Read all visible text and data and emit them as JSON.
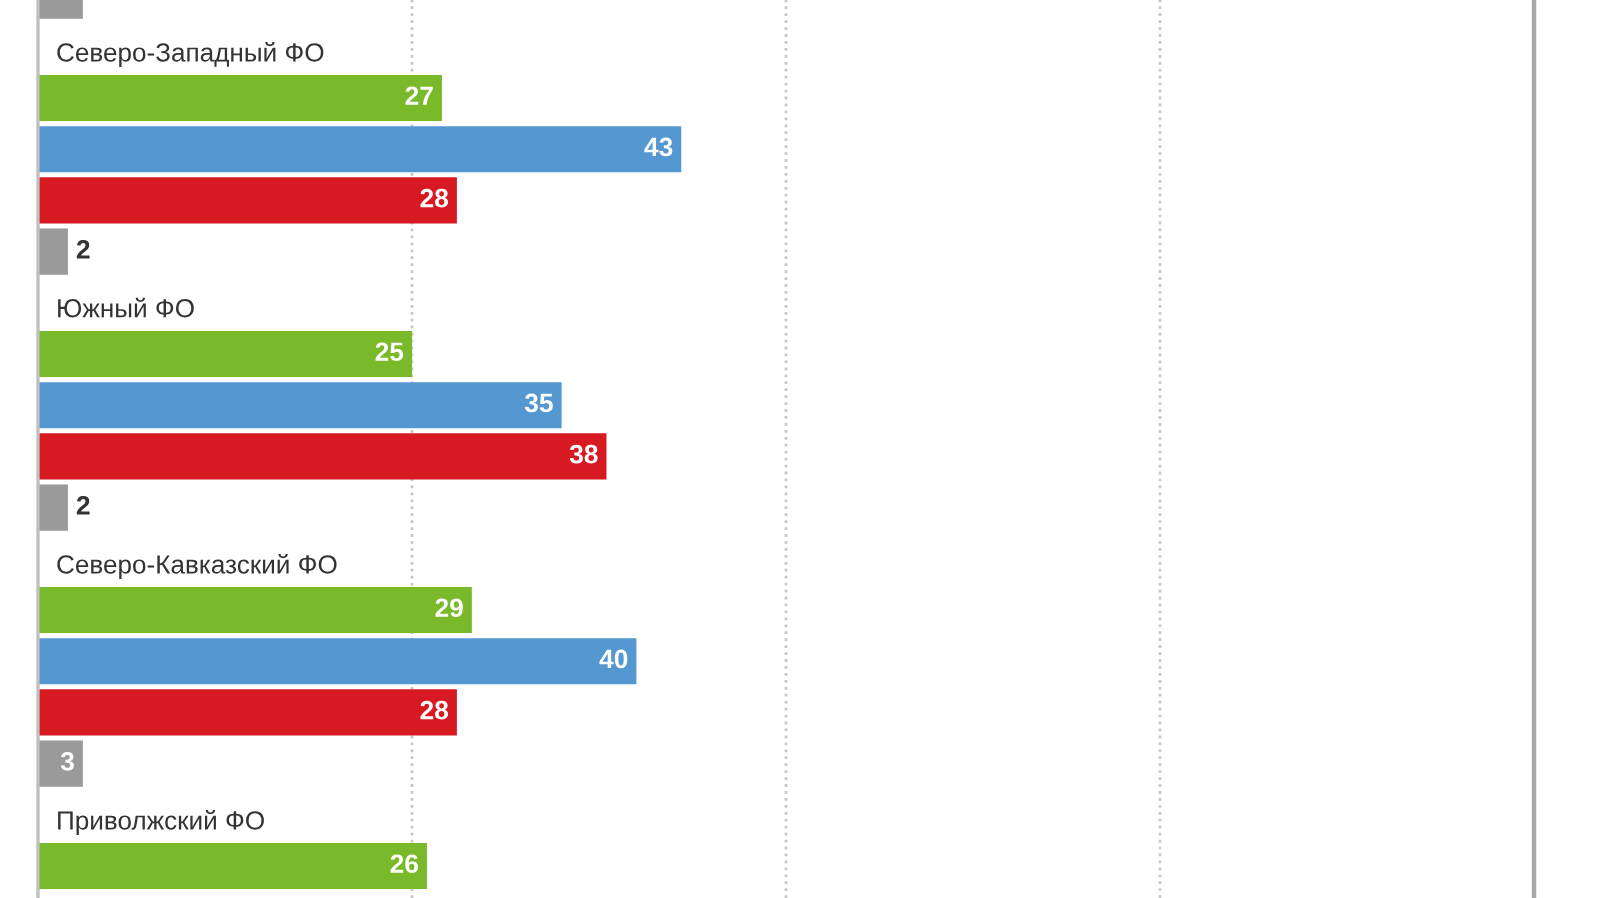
{
  "chart_data": {
    "type": "bar",
    "orientation": "horizontal",
    "categories": [
      null,
      "Северо-Западный ФО",
      "Южный ФО",
      "Северо-Кавказский ФО",
      "Приволжский ФО"
    ],
    "series": [
      {
        "color": "#7ab929",
        "values": [
          null,
          27,
          25,
          29,
          26
        ],
        "value_labels": [
          null,
          "27",
          "25",
          "29",
          "26"
        ]
      },
      {
        "color": "#5597d0",
        "values": [
          null,
          43,
          35,
          40,
          null
        ],
        "value_labels": [
          null,
          "43",
          "35",
          "40",
          null
        ]
      },
      {
        "color": "#d71a21",
        "values": [
          null,
          28,
          38,
          28,
          null
        ],
        "value_labels": [
          null,
          "28",
          "38",
          "28",
          null
        ]
      },
      {
        "color": "#9a9a9a",
        "values": [
          3,
          2,
          2,
          3,
          null
        ],
        "value_labels": [
          null,
          "2",
          "2",
          "3",
          null
        ]
      }
    ],
    "xlim": [
      0,
      100
    ],
    "xticks": [
      {
        "value": 25,
        "label": null
      },
      {
        "value": 50,
        "label": null
      },
      {
        "value": 75,
        "label": null
      },
      {
        "value": 100,
        "label": null
      }
    ],
    "grid": "x",
    "tick_labels": "y"
  }
}
